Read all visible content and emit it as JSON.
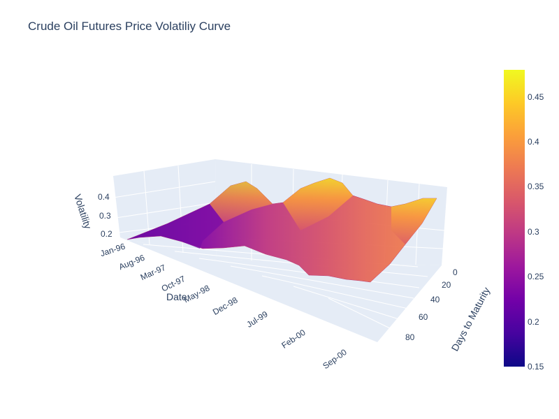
{
  "chart_data": {
    "type": "surface",
    "title": "Crude Oil Futures Price Volatiliy Curve",
    "xlabel": "Date",
    "ylabel": "Days to Maturity",
    "zlabel": "Volatility",
    "x_ticks": [
      "Jan-96",
      "Aug-96",
      "Mar-97",
      "Oct-97",
      "May-98",
      "Dec-98",
      "Jul-99",
      "Feb-00",
      "Sep-00"
    ],
    "y_ticks": [
      "0",
      "20",
      "40",
      "60",
      "80"
    ],
    "z_ticks": [
      "0.2",
      "0.3",
      "0.4"
    ],
    "colorscale": [
      "#0d0887",
      "#46039f",
      "#7201a8",
      "#9c179e",
      "#bd3786",
      "#d8576b",
      "#ed7953",
      "#fb9f3a",
      "#fdca26",
      "#f0f921"
    ],
    "cmin": 0.15,
    "cmax": 0.48,
    "colorbar_ticks": [
      "0.45",
      "0.4",
      "0.35",
      "0.3",
      "0.25",
      "0.2",
      "0.15"
    ],
    "dates": [
      "Jan-96",
      "Aug-96",
      "Mar-97",
      "Oct-97",
      "May-98",
      "Dec-98",
      "Jul-99",
      "Feb-00",
      "Sep-00"
    ],
    "days_to_maturity": [
      0,
      20,
      40,
      60,
      80,
      90
    ],
    "front_month_volatility": [
      0.17,
      0.21,
      0.25,
      0.3,
      0.43,
      0.34,
      0.47,
      0.37,
      0.4
    ]
  }
}
